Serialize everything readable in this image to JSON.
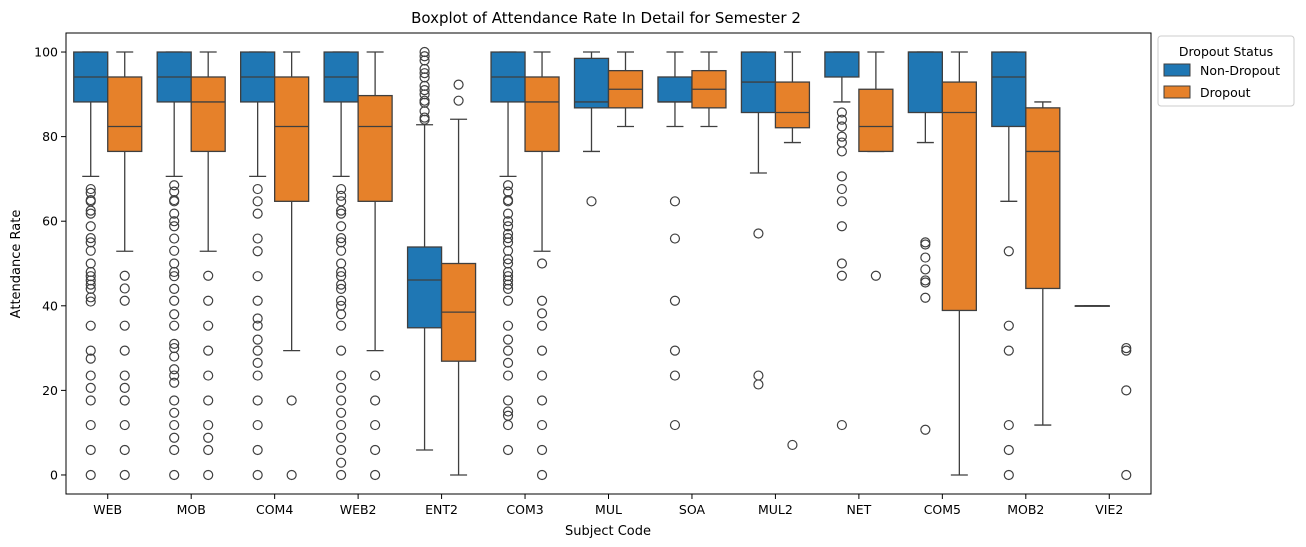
{
  "chart_data": {
    "type": "boxplot",
    "title": "Boxplot of Attendance Rate In Detail for Semester 2",
    "xlabel": "Subject Code",
    "ylabel": "Attendance Rate",
    "ylim": [
      -4.5,
      104.5
    ],
    "yticks": [
      0,
      20,
      40,
      60,
      80,
      100
    ],
    "categories": [
      "WEB",
      "MOB",
      "COM4",
      "WEB2",
      "ENT2",
      "COM3",
      "MUL",
      "SOA",
      "MUL2",
      "NET",
      "COM5",
      "MOB2",
      "VIE2"
    ],
    "legend": {
      "title": "Dropout Status",
      "position": "outside top-right"
    },
    "grid": false,
    "series": [
      {
        "name": "Non-Dropout",
        "color": "#1f77b4",
        "boxes": [
          {
            "category": "WEB",
            "whislo": 70.6,
            "q1": 88.2,
            "med": 94.1,
            "q3": 100,
            "whishi": 100,
            "fliers": [
              67.6,
              66.7,
              65,
              64.7,
              62.5,
              61.8,
              58.8,
              56,
              55,
              53,
              50,
              48,
              47,
              46,
              45,
              44,
              42,
              41,
              35.3,
              29.4,
              27.5,
              23.5,
              20.6,
              17.6,
              11.8,
              5.9,
              0
            ]
          },
          {
            "category": "MOB",
            "whislo": 70.6,
            "q1": 88.2,
            "med": 94.1,
            "q3": 100,
            "whishi": 100,
            "fliers": [
              68.5,
              67,
              65,
              64.7,
              61.8,
              60,
              58.8,
              55.9,
              53,
              50,
              48,
              47,
              44,
              41.2,
              38,
              35.3,
              31,
              30,
              28,
              25,
              23.5,
              21.8,
              17.6,
              14.7,
              11.8,
              8.8,
              5.9,
              0
            ]
          },
          {
            "category": "COM4",
            "whislo": 70.6,
            "q1": 88.2,
            "med": 94.1,
            "q3": 100,
            "whishi": 100,
            "fliers": [
              67.6,
              64.7,
              61.8,
              55.9,
              52.9,
              47,
              41.2,
              37,
              35.3,
              32,
              29.4,
              26.5,
              23.5,
              17.6,
              11.8,
              5.9,
              0
            ]
          },
          {
            "category": "WEB2",
            "whislo": 70.6,
            "q1": 88.2,
            "med": 94.1,
            "q3": 100,
            "whishi": 100,
            "fliers": [
              67.6,
              66,
              64.7,
              62.5,
              61.8,
              58.8,
              56,
              55,
              53,
              50,
              48,
              47,
              45,
              44,
              41.2,
              40,
              38,
              35.3,
              29.4,
              23.5,
              20.6,
              17.6,
              14.7,
              11.8,
              8.8,
              5.9,
              2.9,
              0
            ]
          },
          {
            "category": "ENT2",
            "whislo": 5.9,
            "q1": 34.8,
            "med": 46.1,
            "q3": 53.9,
            "whishi": 82.8,
            "fliers": [
              100,
              99,
              98,
              96,
              95,
              94,
              92,
              91,
              90,
              88.5,
              88,
              86,
              84.5,
              84
            ]
          },
          {
            "category": "COM3",
            "whislo": 70.6,
            "q1": 88.2,
            "med": 94.1,
            "q3": 100,
            "whishi": 100,
            "fliers": [
              68.5,
              67,
              65,
              64.7,
              61.8,
              60,
              58.8,
              57,
              56,
              55,
              53,
              51,
              50,
              48,
              47,
              46,
              45,
              44,
              41.2,
              35.3,
              32,
              29.4,
              26.5,
              23.5,
              17.6,
              15,
              14,
              11.8,
              5.9
            ]
          },
          {
            "category": "MUL",
            "whislo": 76.5,
            "q1": 86.8,
            "med": 88.2,
            "q3": 98.5,
            "whishi": 100,
            "fliers": [
              64.7
            ]
          },
          {
            "category": "SOA",
            "whislo": 82.4,
            "q1": 88.2,
            "med": 88.2,
            "q3": 94.1,
            "whishi": 100,
            "fliers": [
              64.7,
              55.9,
              41.2,
              29.4,
              23.5,
              11.8
            ]
          },
          {
            "category": "MUL2",
            "whislo": 71.4,
            "q1": 85.7,
            "med": 92.9,
            "q3": 100,
            "whishi": 100,
            "fliers": [
              57.1,
              23.5,
              21.4
            ]
          },
          {
            "category": "NET",
            "whislo": 88.2,
            "q1": 94.1,
            "med": 100,
            "q3": 100,
            "whishi": 100,
            "fliers": [
              85.7,
              84,
              82.4,
              80,
              78.6,
              76.5,
              70.6,
              67.6,
              64.7,
              58.8,
              50,
              47.1,
              11.8
            ]
          },
          {
            "category": "COM5",
            "whislo": 78.6,
            "q1": 85.7,
            "med": 100,
            "q3": 100,
            "whishi": 100,
            "fliers": [
              55,
              54.5,
              51.4,
              48.6,
              46,
              45.5,
              41.9,
              10.7
            ]
          },
          {
            "category": "MOB2",
            "whislo": 64.7,
            "q1": 82.4,
            "med": 94.1,
            "q3": 100,
            "whishi": 100,
            "fliers": [
              52.9,
              35.3,
              29.4,
              11.8,
              5.9,
              0
            ]
          },
          {
            "category": "VIE2",
            "whislo": 40,
            "q1": 40,
            "med": 40,
            "q3": 40,
            "whishi": 40,
            "fliers": []
          }
        ]
      },
      {
        "name": "Dropout",
        "color": "#e6812a",
        "boxes": [
          {
            "category": "WEB",
            "whislo": 52.9,
            "q1": 76.5,
            "med": 82.4,
            "q3": 94.1,
            "whishi": 100,
            "fliers": [
              47.1,
              44.1,
              41.2,
              35.3,
              29.4,
              23.5,
              20.6,
              17.6,
              11.8,
              5.9,
              0
            ]
          },
          {
            "category": "MOB",
            "whislo": 52.9,
            "q1": 76.5,
            "med": 88.2,
            "q3": 94.1,
            "whishi": 100,
            "fliers": [
              47.1,
              41.2,
              35.3,
              29.4,
              23.5,
              17.6,
              11.8,
              8.8,
              5.9,
              0
            ]
          },
          {
            "category": "COM4",
            "whislo": 29.4,
            "q1": 64.7,
            "med": 82.4,
            "q3": 94.1,
            "whishi": 100,
            "fliers": [
              17.6,
              0
            ]
          },
          {
            "category": "WEB2",
            "whislo": 29.4,
            "q1": 64.7,
            "med": 82.4,
            "q3": 89.7,
            "whishi": 100,
            "fliers": [
              23.5,
              17.6,
              11.8,
              5.9,
              0
            ]
          },
          {
            "category": "ENT2",
            "whislo": 0,
            "q1": 26.9,
            "med": 38.5,
            "q3": 50,
            "whishi": 84.1,
            "fliers": [
              92.3,
              88.5
            ]
          },
          {
            "category": "COM3",
            "whislo": 52.9,
            "q1": 76.5,
            "med": 88.2,
            "q3": 94.1,
            "whishi": 100,
            "fliers": [
              50,
              41.2,
              38.2,
              35.3,
              29.4,
              23.5,
              17.6,
              11.8,
              5.9,
              0
            ]
          },
          {
            "category": "MUL",
            "whislo": 82.4,
            "q1": 86.8,
            "med": 91.2,
            "q3": 95.6,
            "whishi": 100,
            "fliers": []
          },
          {
            "category": "SOA",
            "whislo": 82.4,
            "q1": 86.8,
            "med": 91.2,
            "q3": 95.6,
            "whishi": 100,
            "fliers": []
          },
          {
            "category": "MUL2",
            "whislo": 78.6,
            "q1": 82.1,
            "med": 85.7,
            "q3": 92.9,
            "whishi": 100,
            "fliers": [
              7.1
            ]
          },
          {
            "category": "NET",
            "whislo": 76.5,
            "q1": 76.5,
            "med": 82.4,
            "q3": 91.2,
            "whishi": 100,
            "fliers": [
              47.1
            ]
          },
          {
            "category": "COM5",
            "whislo": 0,
            "q1": 38.9,
            "med": 85.7,
            "q3": 92.9,
            "whishi": 100,
            "fliers": []
          },
          {
            "category": "MOB2",
            "whislo": 11.8,
            "q1": 44.1,
            "med": 76.5,
            "q3": 86.8,
            "whishi": 88.2,
            "fliers": []
          },
          {
            "category": "VIE2",
            "whislo": null,
            "q1": null,
            "med": null,
            "q3": null,
            "whishi": null,
            "fliers": [
              30,
              29.4,
              20,
              0
            ]
          }
        ]
      }
    ]
  }
}
